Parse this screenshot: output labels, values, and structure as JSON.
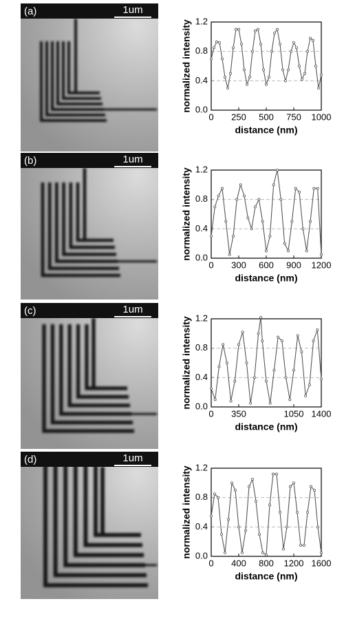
{
  "chart_data": [
    {
      "type": "line",
      "panel_label": "(a)",
      "scale_bar_label": "1um",
      "x_label": "distance (nm)",
      "y_label": "normalized intensity",
      "x": [
        0,
        25,
        50,
        75,
        100,
        125,
        150,
        175,
        200,
        225,
        250,
        275,
        300,
        325,
        350,
        375,
        400,
        425,
        450,
        475,
        500,
        525,
        550,
        575,
        600,
        625,
        650,
        675,
        700,
        725,
        750,
        775,
        800,
        825,
        850,
        875,
        900,
        925,
        950,
        975,
        1000
      ],
      "values": [
        0.7,
        0.85,
        0.93,
        0.92,
        0.7,
        0.45,
        0.3,
        0.5,
        0.85,
        1.1,
        1.1,
        0.9,
        0.55,
        0.35,
        0.45,
        0.8,
        1.08,
        1.1,
        0.9,
        0.55,
        0.35,
        0.45,
        0.8,
        1.05,
        1.1,
        0.9,
        0.55,
        0.4,
        0.55,
        0.8,
        0.92,
        0.85,
        0.6,
        0.42,
        0.5,
        0.8,
        0.98,
        0.95,
        0.6,
        0.3,
        0.48
      ],
      "color": "#555555",
      "marker": "circle",
      "xlim": [
        0,
        1000
      ],
      "xticks": [
        0,
        250,
        500,
        750,
        1000
      ],
      "ylim": [
        0,
        1.2
      ],
      "yticks": [
        {
          "value": 0,
          "label": "0.0"
        },
        0.4,
        0.8,
        1.2
      ],
      "grid": true
    },
    {
      "type": "line",
      "panel_label": "(b)",
      "scale_bar_label": "1um",
      "x_label": "distance (nm)",
      "y_label": "normalized intensity",
      "x": [
        0,
        40,
        80,
        120,
        160,
        200,
        240,
        280,
        320,
        360,
        400,
        440,
        480,
        520,
        560,
        600,
        640,
        680,
        720,
        760,
        800,
        840,
        880,
        920,
        960,
        1000,
        1040,
        1080,
        1120,
        1160,
        1200
      ],
      "values": [
        0.3,
        0.7,
        0.85,
        0.95,
        0.5,
        0.05,
        0.3,
        0.8,
        1.0,
        0.85,
        0.55,
        0.4,
        0.7,
        0.8,
        0.5,
        0.1,
        0.3,
        1.0,
        1.2,
        0.8,
        0.2,
        0.1,
        0.5,
        0.95,
        0.9,
        0.4,
        0.1,
        0.5,
        0.95,
        0.95,
        0.05
      ],
      "color": "#555555",
      "marker": "circle",
      "xlim": [
        0,
        1200
      ],
      "xticks": [
        0,
        300,
        600,
        900,
        1200
      ],
      "ylim": [
        0,
        1.2
      ],
      "yticks": [
        {
          "value": 0,
          "label": "0.0"
        },
        0.4,
        0.8,
        1.2
      ],
      "grid": true
    },
    {
      "type": "line",
      "panel_label": "(c)",
      "scale_bar_label": "1um",
      "x_label": "distance (nm)",
      "y_label": "normalized intensity",
      "x": [
        0,
        50,
        100,
        150,
        200,
        250,
        300,
        350,
        400,
        450,
        500,
        550,
        600,
        630,
        650,
        700,
        750,
        800,
        850,
        900,
        950,
        1000,
        1050,
        1100,
        1150,
        1200,
        1250,
        1300,
        1350,
        1400
      ],
      "values": [
        0.25,
        0.1,
        0.55,
        0.85,
        0.6,
        0.08,
        0.35,
        0.85,
        1.02,
        0.6,
        0.05,
        0.4,
        1.0,
        1.22,
        0.9,
        0.35,
        0.05,
        0.5,
        0.95,
        0.9,
        0.4,
        0.1,
        0.5,
        0.97,
        0.75,
        0.15,
        0.3,
        0.9,
        1.05,
        0.38
      ],
      "color": "#555555",
      "marker": "circle",
      "xlim": [
        0,
        1400
      ],
      "xticks": [
        0,
        350,
        1050,
        1400
      ],
      "ylim": [
        0,
        1.2
      ],
      "yticks": [
        {
          "value": 0,
          "label": "0.0"
        },
        0.4,
        0.8,
        1.2
      ],
      "grid": true
    },
    {
      "type": "line",
      "panel_label": "(d)",
      "scale_bar_label": "1um",
      "x_label": "distance (nm)",
      "y_label": "normalized intensity",
      "x": [
        0,
        50,
        100,
        150,
        200,
        250,
        300,
        350,
        400,
        450,
        500,
        550,
        600,
        650,
        700,
        750,
        800,
        850,
        900,
        950,
        1000,
        1050,
        1100,
        1150,
        1200,
        1250,
        1300,
        1350,
        1400,
        1450,
        1500,
        1550,
        1600
      ],
      "values": [
        0.55,
        0.85,
        0.8,
        0.3,
        0.05,
        0.5,
        1.0,
        0.9,
        0.4,
        0.05,
        0.35,
        0.95,
        1.05,
        0.75,
        0.3,
        0.05,
        0.02,
        0.7,
        1.12,
        1.12,
        0.6,
        0.1,
        0.4,
        0.95,
        1.0,
        0.6,
        0.15,
        0.15,
        0.6,
        0.95,
        0.9,
        0.4,
        0.05
      ],
      "color": "#555555",
      "marker": "circle",
      "xlim": [
        0,
        1600
      ],
      "xticks": [
        0,
        400,
        800,
        1200,
        1600
      ],
      "ylim": [
        0,
        1.2
      ],
      "yticks": [
        {
          "value": 0,
          "label": "0.0"
        },
        0.4,
        0.8,
        1.2
      ],
      "grid": true
    }
  ]
}
